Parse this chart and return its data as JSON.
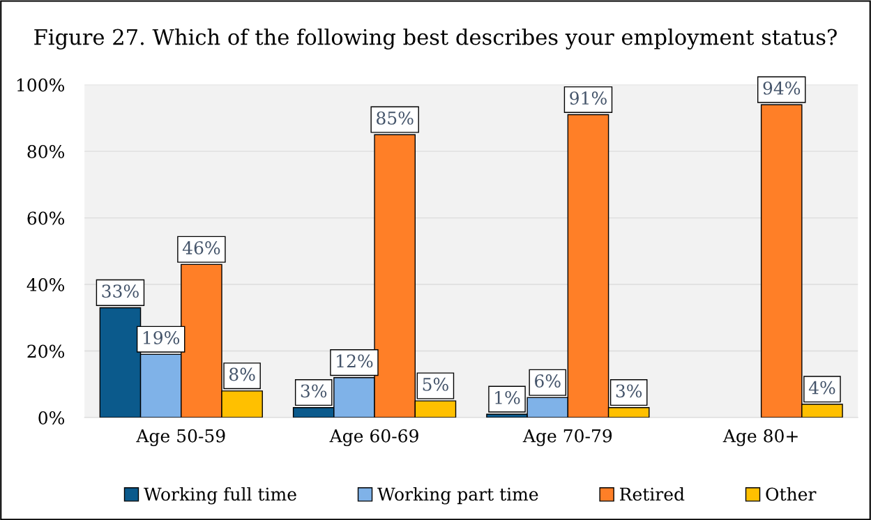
{
  "chart_data": {
    "type": "bar",
    "title": "Figure 27. Which of the following best describes your employment status?",
    "categories": [
      "Age 50-59",
      "Age 60-69",
      "Age 70-79",
      "Age 80+"
    ],
    "series": [
      {
        "name": "Working full time",
        "color": "#0b5a8c",
        "values": [
          33,
          3,
          1,
          null
        ],
        "value_labels": [
          "33%",
          "3%",
          "1%",
          null
        ]
      },
      {
        "name": "Working part time",
        "color": "#7fb2e8",
        "values": [
          19,
          12,
          6,
          null
        ],
        "value_labels": [
          "19%",
          "12%",
          "6%",
          null
        ]
      },
      {
        "name": "Retired",
        "color": "#ff7f27",
        "values": [
          46,
          85,
          91,
          94
        ],
        "value_labels": [
          "46%",
          "85%",
          "91%",
          "94%"
        ]
      },
      {
        "name": "Other",
        "color": "#ffc000",
        "values": [
          8,
          5,
          3,
          4
        ],
        "value_labels": [
          "8%",
          "5%",
          "3%",
          "4%"
        ]
      }
    ],
    "ylim": [
      0,
      100
    ],
    "yticks": [
      {
        "value": 0,
        "label": "0%"
      },
      {
        "value": 20,
        "label": "20%"
      },
      {
        "value": 40,
        "label": "40%"
      },
      {
        "value": 60,
        "label": "60%"
      },
      {
        "value": 80,
        "label": "80%"
      },
      {
        "value": 100,
        "label": "100%"
      }
    ],
    "grid": "y",
    "legend": "bottom"
  }
}
